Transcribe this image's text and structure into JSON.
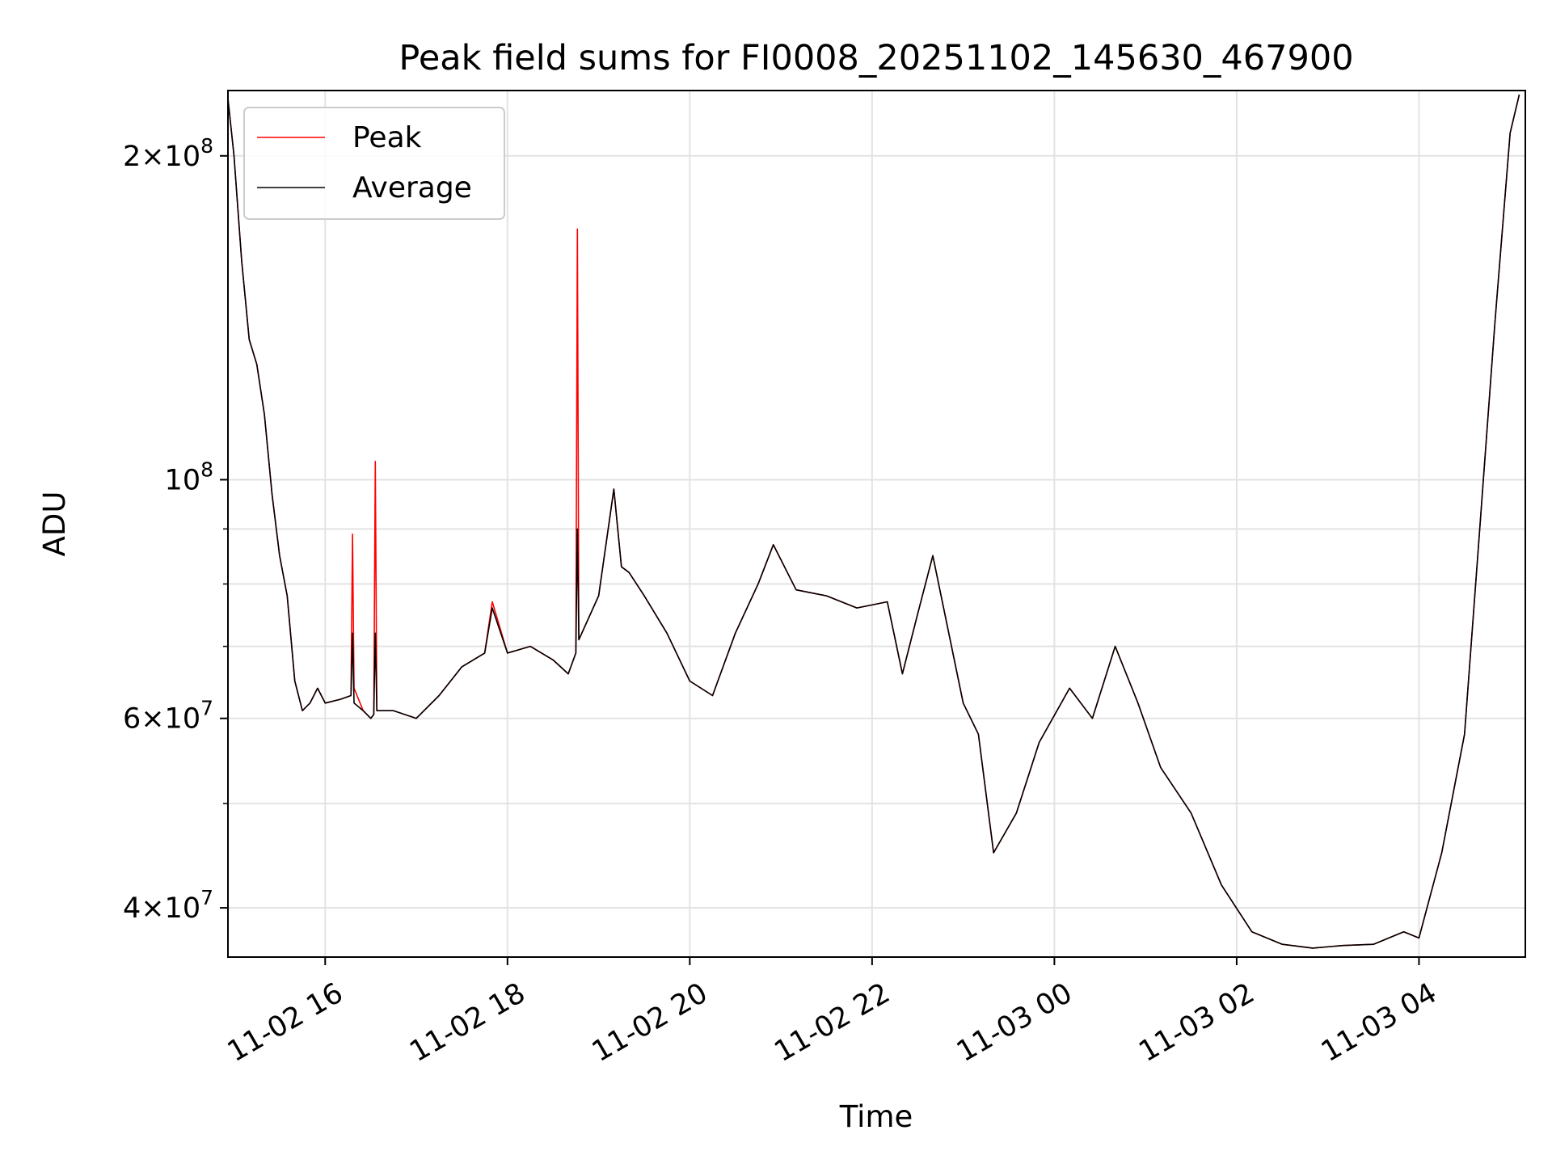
{
  "chart_data": {
    "type": "line",
    "title": "Peak field sums for FI0008_20251102_145630_467900",
    "xlabel": "Time",
    "ylabel": "ADU",
    "yscale": "log",
    "xlim": [
      "2025-11-02 14:56",
      "2025-11-03 05:10"
    ],
    "ylim": [
      36000000,
      230000000
    ],
    "grid": true,
    "legend_position": "upper-left",
    "x_ticks": [
      {
        "value": "2025-11-02 16:00",
        "label": "11-02 16"
      },
      {
        "value": "2025-11-02 18:00",
        "label": "11-02 18"
      },
      {
        "value": "2025-11-02 20:00",
        "label": "11-02 20"
      },
      {
        "value": "2025-11-02 22:00",
        "label": "11-02 22"
      },
      {
        "value": "2025-11-03 00:00",
        "label": "11-03 00"
      },
      {
        "value": "2025-11-03 02:00",
        "label": "11-03 02"
      },
      {
        "value": "2025-11-03 04:00",
        "label": "11-03 04"
      }
    ],
    "y_ticks": [
      {
        "value": 40000000,
        "mantissa": "4",
        "base": "10",
        "exp": "7"
      },
      {
        "value": 60000000,
        "mantissa": "6",
        "base": "10",
        "exp": "7"
      },
      {
        "value": 100000000,
        "mantissa": "",
        "base": "10",
        "exp": "8"
      },
      {
        "value": 200000000,
        "mantissa": "2",
        "base": "10",
        "exp": "8"
      }
    ],
    "y_minor_ticks": [
      50000000,
      70000000,
      80000000,
      90000000
    ],
    "series": [
      {
        "name": "Peak",
        "color": "#ff0000",
        "x": [
          "2025-11-02 14:56",
          "2025-11-02 15:00",
          "2025-11-02 15:05",
          "2025-11-02 15:10",
          "2025-11-02 15:15",
          "2025-11-02 15:20",
          "2025-11-02 15:25",
          "2025-11-02 15:30",
          "2025-11-02 15:35",
          "2025-11-02 15:40",
          "2025-11-02 15:45",
          "2025-11-02 15:50",
          "2025-11-02 15:55",
          "2025-11-02 16:00",
          "2025-11-02 16:10",
          "2025-11-02 16:17",
          "2025-11-02 16:18",
          "2025-11-02 16:19",
          "2025-11-02 16:25",
          "2025-11-02 16:30",
          "2025-11-02 16:32",
          "2025-11-02 16:33",
          "2025-11-02 16:34",
          "2025-11-02 16:45",
          "2025-11-02 17:00",
          "2025-11-02 17:15",
          "2025-11-02 17:30",
          "2025-11-02 17:45",
          "2025-11-02 17:50",
          "2025-11-02 18:00",
          "2025-11-02 18:15",
          "2025-11-02 18:30",
          "2025-11-02 18:40",
          "2025-11-02 18:45",
          "2025-11-02 18:46",
          "2025-11-02 18:47",
          "2025-11-02 19:00",
          "2025-11-02 19:10",
          "2025-11-02 19:15",
          "2025-11-02 19:20",
          "2025-11-02 19:30",
          "2025-11-02 19:45",
          "2025-11-02 20:00",
          "2025-11-02 20:15",
          "2025-11-02 20:30",
          "2025-11-02 20:45",
          "2025-11-02 20:55",
          "2025-11-02 21:10",
          "2025-11-02 21:30",
          "2025-11-02 21:50",
          "2025-11-02 22:10",
          "2025-11-02 22:20",
          "2025-11-02 22:30",
          "2025-11-02 22:40",
          "2025-11-02 23:00",
          "2025-11-02 23:10",
          "2025-11-02 23:20",
          "2025-11-02 23:35",
          "2025-11-02 23:50",
          "2025-11-03 00:10",
          "2025-11-03 00:25",
          "2025-11-03 00:40",
          "2025-11-03 00:55",
          "2025-11-03 01:10",
          "2025-11-03 01:30",
          "2025-11-03 01:50",
          "2025-11-03 02:10",
          "2025-11-03 02:30",
          "2025-11-03 02:50",
          "2025-11-03 03:10",
          "2025-11-03 03:30",
          "2025-11-03 03:50",
          "2025-11-03 04:00",
          "2025-11-03 04:15",
          "2025-11-03 04:30",
          "2025-11-03 04:40",
          "2025-11-03 04:50",
          "2025-11-03 05:00",
          "2025-11-03 05:06"
        ],
        "values": [
          226000000,
          200000000,
          160000000,
          135000000,
          128000000,
          115000000,
          97000000,
          85000000,
          78000000,
          65000000,
          61000000,
          62000000,
          64000000,
          62000000,
          62500000,
          63000000,
          89000000,
          64000000,
          61000000,
          60000000,
          60500000,
          104000000,
          61000000,
          61000000,
          60000000,
          63000000,
          67000000,
          69000000,
          77000000,
          69000000,
          70000000,
          68000000,
          66000000,
          69000000,
          171000000,
          71000000,
          78000000,
          98000000,
          83000000,
          82000000,
          78000000,
          72000000,
          65000000,
          63000000,
          72000000,
          80000000,
          87000000,
          79000000,
          78000000,
          76000000,
          77000000,
          66000000,
          75000000,
          85000000,
          62000000,
          58000000,
          45000000,
          49000000,
          57000000,
          64000000,
          60000000,
          70000000,
          62000000,
          54000000,
          49000000,
          42000000,
          38000000,
          37000000,
          36700000,
          36900000,
          37000000,
          38000000,
          37500000,
          45000000,
          58000000,
          90000000,
          140000000,
          210000000,
          228000000
        ]
      },
      {
        "name": "Average",
        "color": "#000000",
        "x": [
          "2025-11-02 14:56",
          "2025-11-02 15:00",
          "2025-11-02 15:05",
          "2025-11-02 15:10",
          "2025-11-02 15:15",
          "2025-11-02 15:20",
          "2025-11-02 15:25",
          "2025-11-02 15:30",
          "2025-11-02 15:35",
          "2025-11-02 15:40",
          "2025-11-02 15:45",
          "2025-11-02 15:50",
          "2025-11-02 15:55",
          "2025-11-02 16:00",
          "2025-11-02 16:10",
          "2025-11-02 16:17",
          "2025-11-02 16:18",
          "2025-11-02 16:19",
          "2025-11-02 16:25",
          "2025-11-02 16:30",
          "2025-11-02 16:32",
          "2025-11-02 16:33",
          "2025-11-02 16:34",
          "2025-11-02 16:45",
          "2025-11-02 17:00",
          "2025-11-02 17:15",
          "2025-11-02 17:30",
          "2025-11-02 17:45",
          "2025-11-02 17:50",
          "2025-11-02 18:00",
          "2025-11-02 18:15",
          "2025-11-02 18:30",
          "2025-11-02 18:40",
          "2025-11-02 18:45",
          "2025-11-02 18:46",
          "2025-11-02 18:47",
          "2025-11-02 19:00",
          "2025-11-02 19:10",
          "2025-11-02 19:15",
          "2025-11-02 19:20",
          "2025-11-02 19:30",
          "2025-11-02 19:45",
          "2025-11-02 20:00",
          "2025-11-02 20:15",
          "2025-11-02 20:30",
          "2025-11-02 20:45",
          "2025-11-02 20:55",
          "2025-11-02 21:10",
          "2025-11-02 21:30",
          "2025-11-02 21:50",
          "2025-11-02 22:10",
          "2025-11-02 22:20",
          "2025-11-02 22:30",
          "2025-11-02 22:40",
          "2025-11-02 23:00",
          "2025-11-02 23:10",
          "2025-11-02 23:20",
          "2025-11-02 23:35",
          "2025-11-02 23:50",
          "2025-11-03 00:10",
          "2025-11-03 00:25",
          "2025-11-03 00:40",
          "2025-11-03 00:55",
          "2025-11-03 01:10",
          "2025-11-03 01:30",
          "2025-11-03 01:50",
          "2025-11-03 02:10",
          "2025-11-03 02:30",
          "2025-11-03 02:50",
          "2025-11-03 03:10",
          "2025-11-03 03:30",
          "2025-11-03 03:50",
          "2025-11-03 04:00",
          "2025-11-03 04:15",
          "2025-11-03 04:30",
          "2025-11-03 04:40",
          "2025-11-03 04:50",
          "2025-11-03 05:00",
          "2025-11-03 05:06"
        ],
        "values": [
          226000000,
          200000000,
          160000000,
          135000000,
          128000000,
          115000000,
          97000000,
          85000000,
          78000000,
          65000000,
          61000000,
          62000000,
          64000000,
          62000000,
          62500000,
          63000000,
          72000000,
          62000000,
          61000000,
          60000000,
          60500000,
          72000000,
          61000000,
          61000000,
          60000000,
          63000000,
          67000000,
          69000000,
          76000000,
          69000000,
          70000000,
          68000000,
          66000000,
          69000000,
          90000000,
          71000000,
          78000000,
          98000000,
          83000000,
          82000000,
          78000000,
          72000000,
          65000000,
          63000000,
          72000000,
          80000000,
          87000000,
          79000000,
          78000000,
          76000000,
          77000000,
          66000000,
          75000000,
          85000000,
          62000000,
          58000000,
          45000000,
          49000000,
          57000000,
          64000000,
          60000000,
          70000000,
          62000000,
          54000000,
          49000000,
          42000000,
          38000000,
          37000000,
          36700000,
          36900000,
          37000000,
          38000000,
          37500000,
          45000000,
          58000000,
          90000000,
          140000000,
          210000000,
          228000000
        ]
      }
    ]
  }
}
